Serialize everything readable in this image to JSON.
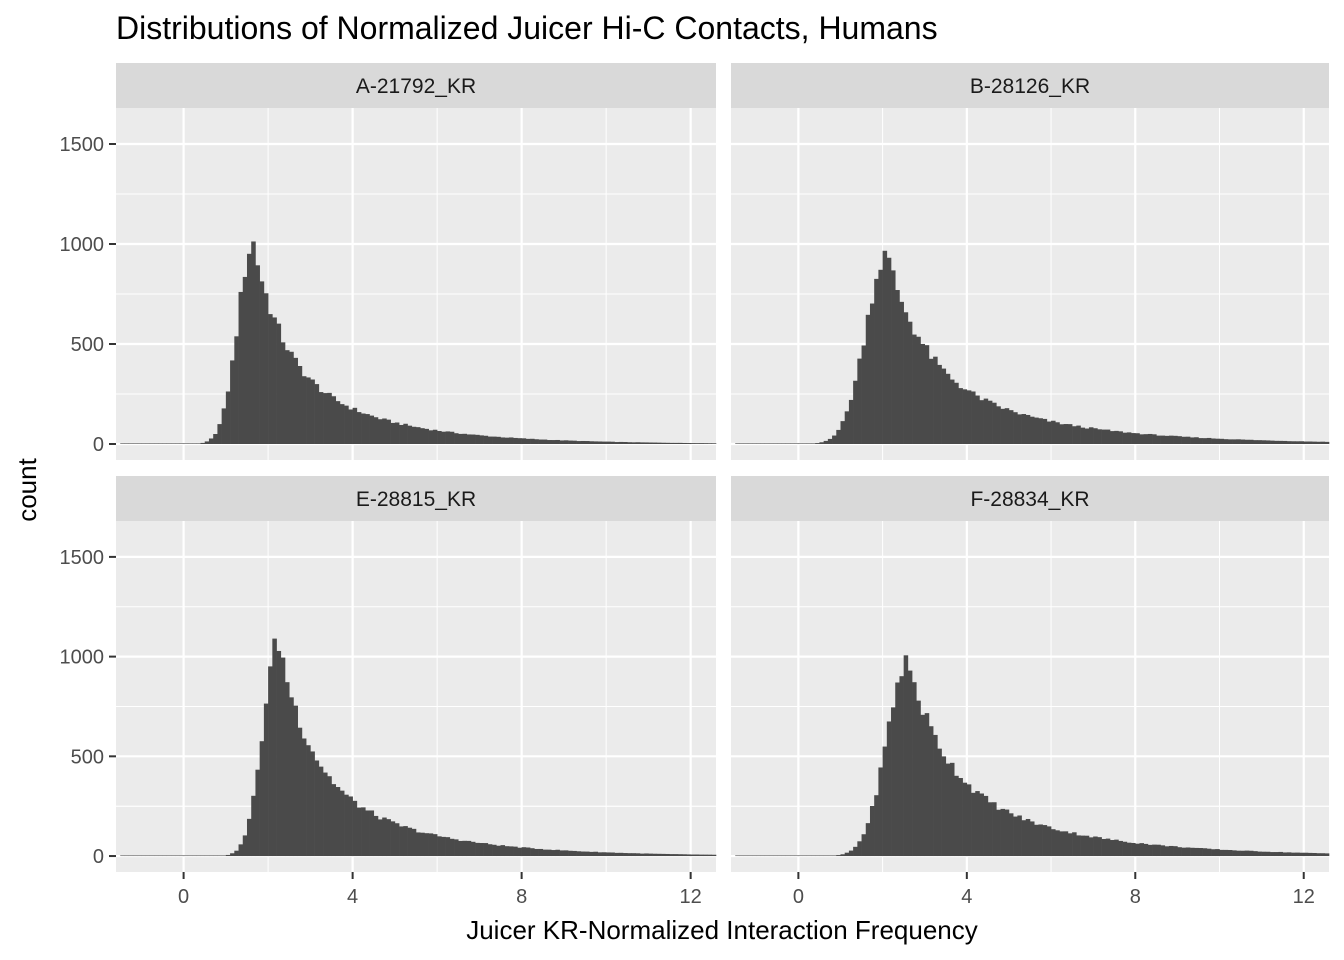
{
  "chart_data": {
    "type": "bar",
    "subtype": "faceted-histogram",
    "title": "Distributions of Normalized Juicer Hi-C Contacts, Humans",
    "xlabel": "Juicer KR-Normalized Interaction Frequency",
    "ylabel": "count",
    "xlim": [
      -1.6,
      12.6
    ],
    "ylim": [
      -80,
      1680
    ],
    "x_ticks": [
      0,
      4,
      8,
      12
    ],
    "y_ticks": [
      0,
      500,
      1000,
      1500
    ],
    "bin_width": 0.1,
    "grid": true,
    "legend": "none",
    "colors": {
      "bar": "#4a4a4a",
      "panel": "#ebebeb",
      "strip": "#d9d9d9",
      "grid": "#ffffff"
    },
    "facets": [
      {
        "label": "A-21792_KR",
        "mode": 1.65,
        "peak": 1005,
        "rise": 0.55,
        "tail": 1.2,
        "left_bound": 0.05
      },
      {
        "label": "B-28126_KR",
        "mode": 2.1,
        "peak": 945,
        "rise": 0.75,
        "tail": 1.5,
        "left_bound": -0.1
      },
      {
        "label": "E-28815_KR",
        "mode": 2.25,
        "peak": 1075,
        "rise": 0.55,
        "tail": 1.25,
        "left_bound": 0.35
      },
      {
        "label": "F-28834_KR",
        "mode": 2.6,
        "peak": 975,
        "rise": 0.75,
        "tail": 1.5,
        "left_bound": 0.2
      }
    ]
  }
}
